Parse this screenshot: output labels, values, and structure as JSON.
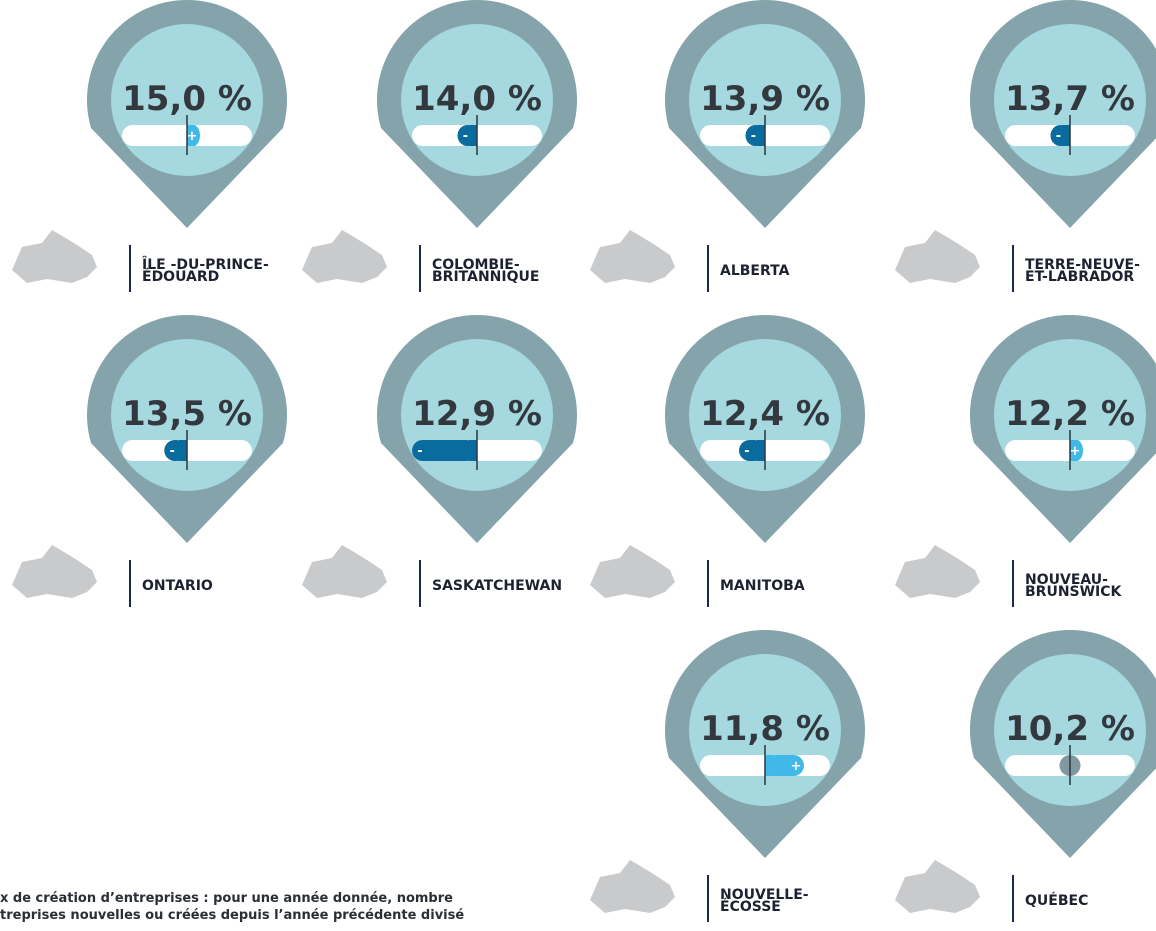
{
  "provinces": [
    {
      "rate": "15,0 %",
      "trend": 0.2,
      "sign": "+",
      "name": [
        "ÎLE -DU-PRINCE-",
        "ÉDOUARD"
      ]
    },
    {
      "rate": "14,0 %",
      "trend": -0.3,
      "sign": "-",
      "name": [
        "COLOMBIE-",
        "BRITANNIQUE"
      ]
    },
    {
      "rate": "13,9 %",
      "trend": -0.3,
      "sign": "-",
      "name": [
        "ALBERTA"
      ]
    },
    {
      "rate": "13,7 %",
      "trend": -0.3,
      "sign": "-",
      "name": [
        "TERRE-NEUVE-",
        "ET-LABRADOR"
      ]
    },
    {
      "rate": "13,5 %",
      "trend": -0.35,
      "sign": "-",
      "name": [
        "ONTARIO"
      ]
    },
    {
      "rate": "12,9 %",
      "trend": -1.0,
      "sign": "-",
      "name": [
        "SASKATCHEWAN"
      ]
    },
    {
      "rate": "12,4 %",
      "trend": -0.4,
      "sign": "-",
      "name": [
        "MANITOBA"
      ]
    },
    {
      "rate": "12,2 %",
      "trend": 0.2,
      "sign": "+",
      "name": [
        "NOUVEAU-",
        "BRUNSWICK"
      ]
    },
    {
      "rate": "11,8 %",
      "trend": 0.6,
      "sign": "+",
      "name": [
        "NOUVELLE-",
        "ÉCOSSE"
      ]
    },
    {
      "rate": "10,2 %",
      "trend": 0,
      "name": [
        "QUÉBEC"
      ]
    }
  ],
  "footnote": [
    "x de création d’entreprises : pour une année donnée, nombre",
    "treprises nouvelles ou créées depuis l’année précédente divisé"
  ]
}
